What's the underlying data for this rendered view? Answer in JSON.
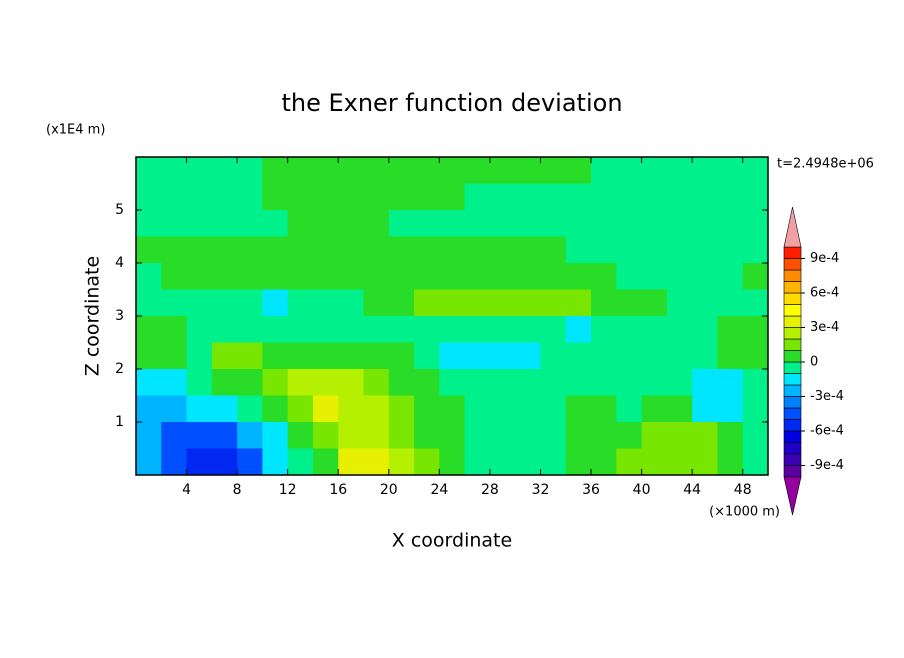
{
  "chart_data": {
    "type": "contour",
    "title": "the Exner function deviation",
    "xlabel": "X coordinate",
    "ylabel": "Z coordinate",
    "x_unit_label": "(×1000 m)",
    "y_unit_label": "(x1E4 m)",
    "time_label": "t=2.4948e+06",
    "xlim": [
      0,
      50
    ],
    "ylim": [
      0,
      6
    ],
    "xticks": [
      4,
      8,
      12,
      16,
      20,
      24,
      28,
      32,
      36,
      40,
      44,
      48
    ],
    "yticks": [
      1,
      2,
      3,
      4,
      5
    ],
    "x": [
      1,
      3,
      5,
      7,
      9,
      11,
      13,
      15,
      17,
      19,
      21,
      23,
      25,
      27,
      29,
      31,
      33,
      35,
      37,
      39,
      41,
      43,
      45,
      47,
      49
    ],
    "y": [
      5.75,
      5.25,
      4.75,
      4.25,
      3.75,
      3.25,
      2.75,
      2.25,
      1.75,
      1.25,
      0.75,
      0.25
    ],
    "z": [
      [
        -5e-05,
        -5e-05,
        -5e-05,
        -5e-05,
        -5e-05,
        5e-05,
        5e-05,
        5e-05,
        5e-05,
        5e-05,
        5e-05,
        5e-05,
        5e-05,
        5e-05,
        5e-05,
        5e-05,
        5e-05,
        5e-05,
        -5e-05,
        -5e-05,
        -5e-05,
        -5e-05,
        -5e-05,
        -5e-05,
        -5e-05
      ],
      [
        -5e-05,
        -5e-05,
        -5e-05,
        -5e-05,
        -5e-05,
        5e-05,
        5e-05,
        5e-05,
        5e-05,
        5e-05,
        5e-05,
        5e-05,
        5e-05,
        -5e-05,
        -5e-05,
        -5e-05,
        -5e-05,
        -5e-05,
        -5e-05,
        -5e-05,
        -5e-05,
        -5e-05,
        -5e-05,
        -5e-05,
        -5e-05
      ],
      [
        -5e-05,
        -5e-05,
        -5e-05,
        -5e-05,
        -5e-05,
        -5e-05,
        5e-05,
        5e-05,
        5e-05,
        5e-05,
        -5e-05,
        -5e-05,
        -5e-05,
        -5e-05,
        -5e-05,
        -5e-05,
        -5e-05,
        -5e-05,
        -5e-05,
        -5e-05,
        -5e-05,
        -5e-05,
        -5e-05,
        -5e-05,
        -5e-05
      ],
      [
        5e-05,
        5e-05,
        5e-05,
        5e-05,
        5e-05,
        5e-05,
        5e-05,
        5e-05,
        5e-05,
        5e-05,
        5e-05,
        5e-05,
        5e-05,
        5e-05,
        5e-05,
        5e-05,
        5e-05,
        -5e-05,
        -5e-05,
        -5e-05,
        -5e-05,
        -5e-05,
        -5e-05,
        -5e-05,
        -5e-05
      ],
      [
        -5e-05,
        5e-05,
        5e-05,
        5e-05,
        5e-05,
        5e-05,
        5e-05,
        5e-05,
        5e-05,
        5e-05,
        5e-05,
        5e-05,
        5e-05,
        5e-05,
        5e-05,
        5e-05,
        5e-05,
        5e-05,
        5e-05,
        -5e-05,
        -5e-05,
        -5e-05,
        -5e-05,
        -5e-05,
        5e-05
      ],
      [
        -5e-05,
        -5e-05,
        -5e-05,
        -5e-05,
        -5e-05,
        -0.00015,
        -5e-05,
        -5e-05,
        -5e-05,
        5e-05,
        5e-05,
        0.00015,
        0.00015,
        0.00015,
        0.00015,
        0.00015,
        0.00015,
        0.00015,
        5e-05,
        5e-05,
        5e-05,
        -5e-05,
        -5e-05,
        -5e-05,
        -5e-05
      ],
      [
        5e-05,
        5e-05,
        -5e-05,
        -5e-05,
        -5e-05,
        -5e-05,
        -5e-05,
        -5e-05,
        -5e-05,
        -5e-05,
        -5e-05,
        -5e-05,
        -5e-05,
        -5e-05,
        -5e-05,
        -5e-05,
        -5e-05,
        -0.00015,
        -5e-05,
        -5e-05,
        -5e-05,
        -5e-05,
        -5e-05,
        5e-05,
        5e-05
      ],
      [
        5e-05,
        5e-05,
        -5e-05,
        0.00015,
        0.00015,
        5e-05,
        5e-05,
        5e-05,
        5e-05,
        5e-05,
        5e-05,
        -5e-05,
        -0.00015,
        -0.00015,
        -0.00015,
        -0.00015,
        -5e-05,
        -5e-05,
        -5e-05,
        -5e-05,
        -5e-05,
        -5e-05,
        -5e-05,
        5e-05,
        5e-05
      ],
      [
        -0.00015,
        -0.00015,
        -5e-05,
        5e-05,
        5e-05,
        0.00015,
        0.00025,
        0.00025,
        0.00025,
        0.00015,
        5e-05,
        5e-05,
        -5e-05,
        -5e-05,
        -5e-05,
        -5e-05,
        -5e-05,
        -5e-05,
        -5e-05,
        -5e-05,
        -5e-05,
        -5e-05,
        -0.00015,
        -0.00015,
        -5e-05
      ],
      [
        -0.00025,
        -0.00025,
        -0.00015,
        -0.00015,
        -5e-05,
        5e-05,
        0.00015,
        0.00035,
        0.00025,
        0.00025,
        0.00015,
        5e-05,
        5e-05,
        -5e-05,
        -5e-05,
        -5e-05,
        -5e-05,
        5e-05,
        5e-05,
        -5e-05,
        5e-05,
        5e-05,
        -0.00015,
        -0.00015,
        -5e-05
      ],
      [
        -0.00025,
        -0.00045,
        -0.00045,
        -0.00045,
        -0.00025,
        -0.00015,
        5e-05,
        0.00015,
        0.00025,
        0.00025,
        0.00015,
        5e-05,
        5e-05,
        -5e-05,
        -5e-05,
        -5e-05,
        -5e-05,
        5e-05,
        5e-05,
        5e-05,
        0.00015,
        0.00015,
        0.00015,
        5e-05,
        -5e-05
      ],
      [
        -0.00025,
        -0.00045,
        -0.00055,
        -0.00055,
        -0.00045,
        -0.00015,
        -5e-05,
        5e-05,
        0.00035,
        0.00035,
        0.00025,
        0.00015,
        5e-05,
        -5e-05,
        -5e-05,
        -5e-05,
        -5e-05,
        5e-05,
        5e-05,
        0.00015,
        0.00015,
        0.00015,
        0.00015,
        5e-05,
        -5e-05
      ]
    ],
    "levels": [
      -0.001,
      -0.0009,
      -0.0008,
      -0.0007,
      -0.0006,
      -0.0005,
      -0.0004,
      -0.0003,
      -0.0002,
      -0.0001,
      0,
      0.0001,
      0.0002,
      0.0003,
      0.0004,
      0.0005,
      0.0006,
      0.0007,
      0.0008,
      0.0009,
      0.001
    ],
    "colors": [
      "#9600a0",
      "#5a00a0",
      "#3c00b4",
      "#1e00c8",
      "#0000e0",
      "#0028f0",
      "#0050ff",
      "#0082ff",
      "#00b4ff",
      "#00e6ff",
      "#00f08c",
      "#28dc28",
      "#78e600",
      "#b4f000",
      "#e6f000",
      "#ffff00",
      "#ffdc00",
      "#ffb400",
      "#ff8c00",
      "#ff5000",
      "#ff1e00",
      "#f0a0a0"
    ],
    "colorbar_ticks": [
      {
        "value": -0.0009,
        "label": "-9e-4"
      },
      {
        "value": -0.0006,
        "label": "-6e-4"
      },
      {
        "value": -0.0003,
        "label": "-3e-4"
      },
      {
        "value": 0,
        "label": "0"
      },
      {
        "value": 0.0003,
        "label": "3e-4"
      },
      {
        "value": 0.0006,
        "label": "6e-4"
      },
      {
        "value": 0.0009,
        "label": "9e-4"
      }
    ]
  }
}
